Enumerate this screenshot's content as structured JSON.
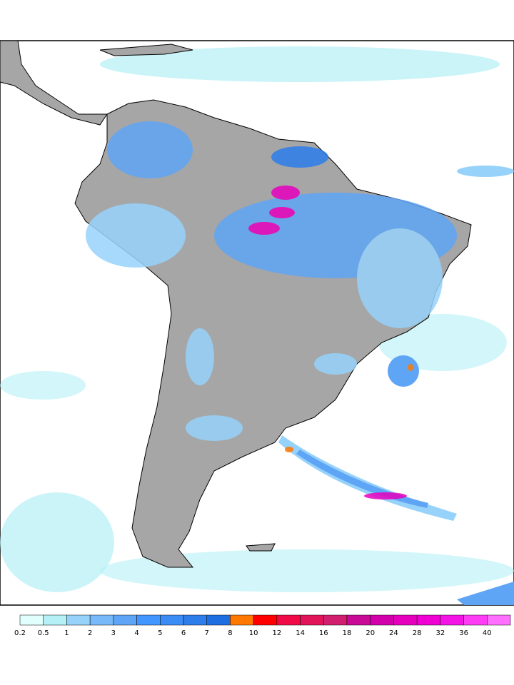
{
  "legend": {
    "levels": [
      0.2,
      0.5,
      1,
      2,
      3,
      4,
      5,
      6,
      7,
      8,
      10,
      12,
      14,
      16,
      18,
      20,
      24,
      28,
      32,
      36,
      40
    ],
    "colors": [
      "#e1fffc",
      "#b4f0f5",
      "#96d2fa",
      "#78b9fa",
      "#5fa5f5",
      "#4196ff",
      "#3c8cf5",
      "#2d7deb",
      "#1e6ee1",
      "#ff7800",
      "#ff0000",
      "#f00a46",
      "#e1145a",
      "#d21e6e",
      "#c80a96",
      "#d200aa",
      "#e600be",
      "#f000d2",
      "#f514e6",
      "#ff3cf5",
      "#ff6eff"
    ]
  }
}
